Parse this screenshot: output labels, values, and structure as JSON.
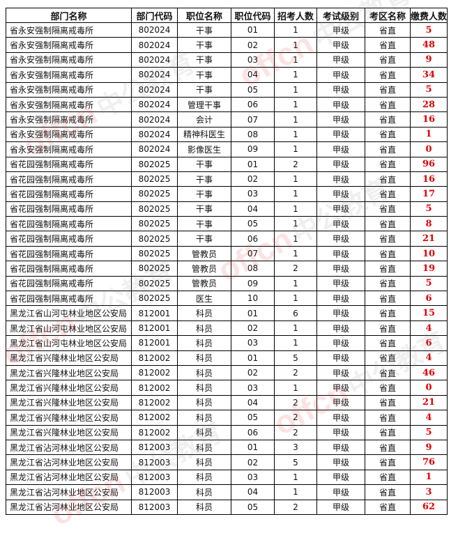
{
  "watermark": "offcn 中公教育",
  "headers": [
    "部门名称",
    "部门代码",
    "职位名称",
    "职位代码",
    "招考人数",
    "考试级别",
    "考区名称",
    "缴费人数"
  ],
  "rows": [
    [
      "省永安强制隔离戒毒所",
      "802024",
      "干事",
      "01",
      "1",
      "甲级",
      "省直",
      "5"
    ],
    [
      "省永安强制隔离戒毒所",
      "802024",
      "干事",
      "02",
      "1",
      "甲级",
      "省直",
      "48"
    ],
    [
      "省永安强制隔离戒毒所",
      "802024",
      "干事",
      "03",
      "1",
      "甲级",
      "省直",
      "9"
    ],
    [
      "省永安强制隔离戒毒所",
      "802024",
      "干事",
      "04",
      "1",
      "甲级",
      "省直",
      "34"
    ],
    [
      "省永安强制隔离戒毒所",
      "802024",
      "干事",
      "05",
      "1",
      "甲级",
      "省直",
      "5"
    ],
    [
      "省永安强制隔离戒毒所",
      "802024",
      "管理干事",
      "06",
      "1",
      "甲级",
      "省直",
      "28"
    ],
    [
      "省永安强制隔离戒毒所",
      "802024",
      "会计",
      "07",
      "1",
      "甲级",
      "省直",
      "16"
    ],
    [
      "省永安强制隔离戒毒所",
      "802024",
      "精神科医生",
      "08",
      "1",
      "甲级",
      "省直",
      "1"
    ],
    [
      "省永安强制隔离戒毒所",
      "802024",
      "影像医生",
      "09",
      "1",
      "甲级",
      "省直",
      "0"
    ],
    [
      "省花园强制隔离戒毒所",
      "802025",
      "干事",
      "01",
      "2",
      "甲级",
      "省直",
      "96"
    ],
    [
      "省花园强制隔离戒毒所",
      "802025",
      "干事",
      "02",
      "1",
      "甲级",
      "省直",
      "16"
    ],
    [
      "省花园强制隔离戒毒所",
      "802025",
      "干事",
      "03",
      "1",
      "甲级",
      "省直",
      "17"
    ],
    [
      "省花园强制隔离戒毒所",
      "802025",
      "干事",
      "04",
      "1",
      "甲级",
      "省直",
      "5"
    ],
    [
      "省花园强制隔离戒毒所",
      "802025",
      "干事",
      "05",
      "1",
      "甲级",
      "省直",
      "8"
    ],
    [
      "省花园强制隔离戒毒所",
      "802025",
      "干事",
      "06",
      "1",
      "甲级",
      "省直",
      "21"
    ],
    [
      "省花园强制隔离戒毒所",
      "802025",
      "管教员",
      "07",
      "1",
      "甲级",
      "省直",
      "10"
    ],
    [
      "省花园强制隔离戒毒所",
      "802025",
      "管教员",
      "08",
      "2",
      "甲级",
      "省直",
      "19"
    ],
    [
      "省花园强制隔离戒毒所",
      "802025",
      "管教员",
      "09",
      "1",
      "甲级",
      "省直",
      "5"
    ],
    [
      "省花园强制隔离戒毒所",
      "802025",
      "医生",
      "10",
      "1",
      "甲级",
      "省直",
      "6"
    ],
    [
      "黑龙江省山河屯林业地区公安局",
      "812001",
      "科员",
      "01",
      "6",
      "甲级",
      "省直",
      "15"
    ],
    [
      "黑龙江省山河屯林业地区公安局",
      "812001",
      "科员",
      "02",
      "1",
      "甲级",
      "省直",
      "4"
    ],
    [
      "黑龙江省山河屯林业地区公安局",
      "812001",
      "科员",
      "03",
      "1",
      "甲级",
      "省直",
      "6"
    ],
    [
      "黑龙江省兴隆林业地区公安局",
      "812002",
      "科员",
      "01",
      "5",
      "甲级",
      "省直",
      "4"
    ],
    [
      "黑龙江省兴隆林业地区公安局",
      "812002",
      "科员",
      "02",
      "2",
      "甲级",
      "省直",
      "46"
    ],
    [
      "黑龙江省兴隆林业地区公安局",
      "812002",
      "科员",
      "03",
      "1",
      "甲级",
      "省直",
      "0"
    ],
    [
      "黑龙江省兴隆林业地区公安局",
      "812002",
      "科员",
      "04",
      "2",
      "甲级",
      "省直",
      "21"
    ],
    [
      "黑龙江省兴隆林业地区公安局",
      "812002",
      "科员",
      "05",
      "2",
      "甲级",
      "省直",
      "4"
    ],
    [
      "黑龙江省兴隆林业地区公安局",
      "812002",
      "科员",
      "06",
      "2",
      "甲级",
      "省直",
      "5"
    ],
    [
      "黑龙江省沾河林业地区公安局",
      "812003",
      "科员",
      "01",
      "3",
      "甲级",
      "省直",
      "9"
    ],
    [
      "黑龙江省沾河林业地区公安局",
      "812003",
      "科员",
      "02",
      "5",
      "甲级",
      "省直",
      "76"
    ],
    [
      "黑龙江省沾河林业地区公安局",
      "812003",
      "科员",
      "03",
      "1",
      "甲级",
      "省直",
      "1"
    ],
    [
      "黑龙江省沾河林业地区公安局",
      "812003",
      "科员",
      "04",
      "1",
      "甲级",
      "省直",
      "3"
    ],
    [
      "黑龙江省沾河林业地区公安局",
      "812003",
      "科员",
      "05",
      "2",
      "甲级",
      "省直",
      "62"
    ]
  ]
}
